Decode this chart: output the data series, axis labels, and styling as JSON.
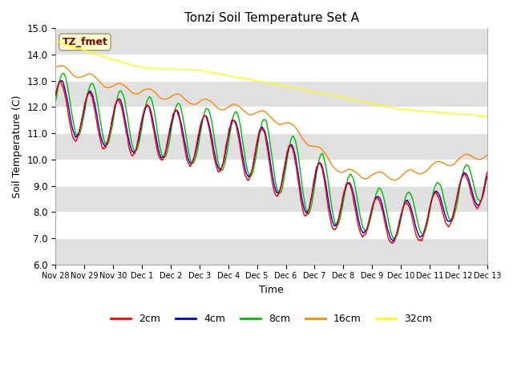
{
  "title": "Tonzi Soil Temperature Set A",
  "xlabel": "Time",
  "ylabel": "Soil Temperature (C)",
  "ylim": [
    6.0,
    15.0
  ],
  "yticks": [
    6.0,
    7.0,
    8.0,
    9.0,
    10.0,
    11.0,
    12.0,
    13.0,
    14.0,
    15.0
  ],
  "colors": {
    "2cm": "#ff0000",
    "4cm": "#0000cc",
    "8cm": "#00bb00",
    "16cm": "#ff8800",
    "32cm": "#ffff00"
  },
  "legend_labels": [
    "2cm",
    "4cm",
    "8cm",
    "16cm",
    "32cm"
  ],
  "annotation_text": "TZ_fmet",
  "annotation_color": "#880000",
  "annotation_bg": "#ffffcc",
  "annotation_edge": "#999977",
  "fig_bg": "#ffffff",
  "plot_bg": "#e8e8e8",
  "band_light": "#f0f0f0",
  "band_dark": "#e0e0e0",
  "x_tick_labels": [
    "Nov 28",
    "Nov 29",
    "Nov 30",
    "Dec 1",
    "Dec 2",
    "Dec 3",
    "Dec 4",
    "Dec 5",
    "Dec 6",
    "Dec 7",
    "Dec 8",
    "Dec 9",
    "Dec 10",
    "Dec 11",
    "Dec 12",
    "Dec 13"
  ],
  "n_points": 1440,
  "linewidth": 1.0
}
